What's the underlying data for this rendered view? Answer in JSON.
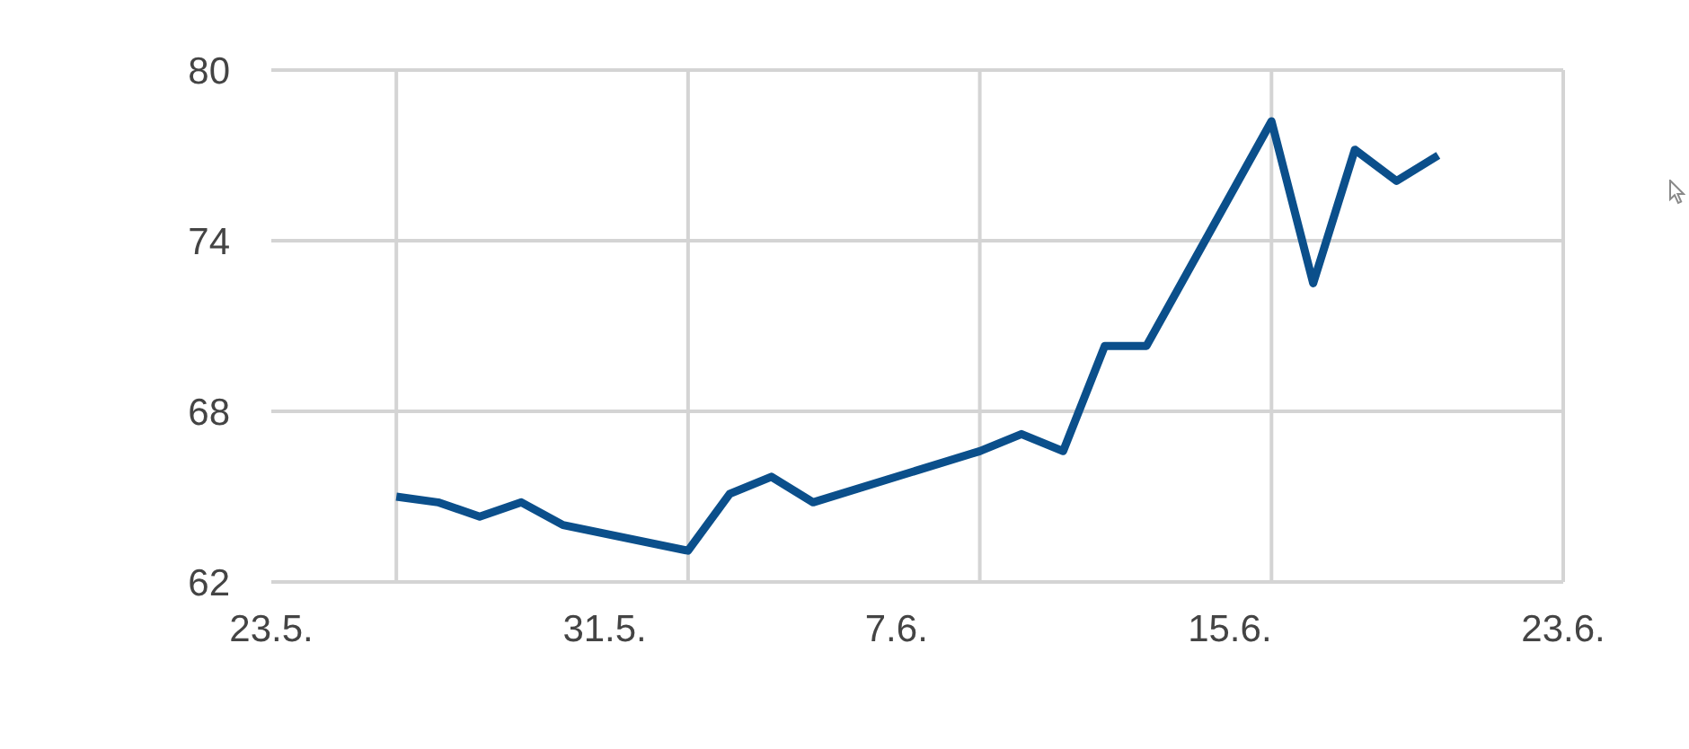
{
  "chart_data": {
    "type": "line",
    "x": [
      "--05-26",
      "--05-27",
      "--05-28",
      "--05-29",
      "--05-30",
      "--06-02",
      "--06-03",
      "--06-04",
      "--06-05",
      "--06-09",
      "--06-10",
      "--06-11",
      "--06-12",
      "--06-13",
      "--06-16",
      "--06-17",
      "--06-18",
      "--06-19",
      "--06-20"
    ],
    "series": [
      {
        "color": "#0b4f8b",
        "values": [
          65.0,
          64.8,
          64.3,
          64.8,
          64.0,
          63.1,
          65.1,
          65.7,
          64.8,
          66.6,
          67.2,
          66.6,
          70.3,
          70.3,
          78.2,
          72.5,
          77.2,
          76.1,
          77.0
        ]
      }
    ],
    "xlim": [
      "--05-23",
      "--06-23"
    ],
    "xticks": [
      {
        "value": "--05-23",
        "label": "23.5."
      },
      {
        "value": "--05-26",
        "label": null
      },
      {
        "value": "--05-31",
        "label": "31.5."
      },
      {
        "value": "--06-02",
        "label": null
      },
      {
        "value": "--06-07",
        "label": "7.6."
      },
      {
        "value": "--06-09",
        "label": null
      },
      {
        "value": "--06-15",
        "label": "15.6."
      },
      {
        "value": "--06-16",
        "label": null
      },
      {
        "value": "--06-23",
        "label": "23.6."
      }
    ],
    "ylim": [
      62,
      80
    ],
    "yticks": [
      62,
      68,
      74,
      80
    ],
    "grid": true
  }
}
